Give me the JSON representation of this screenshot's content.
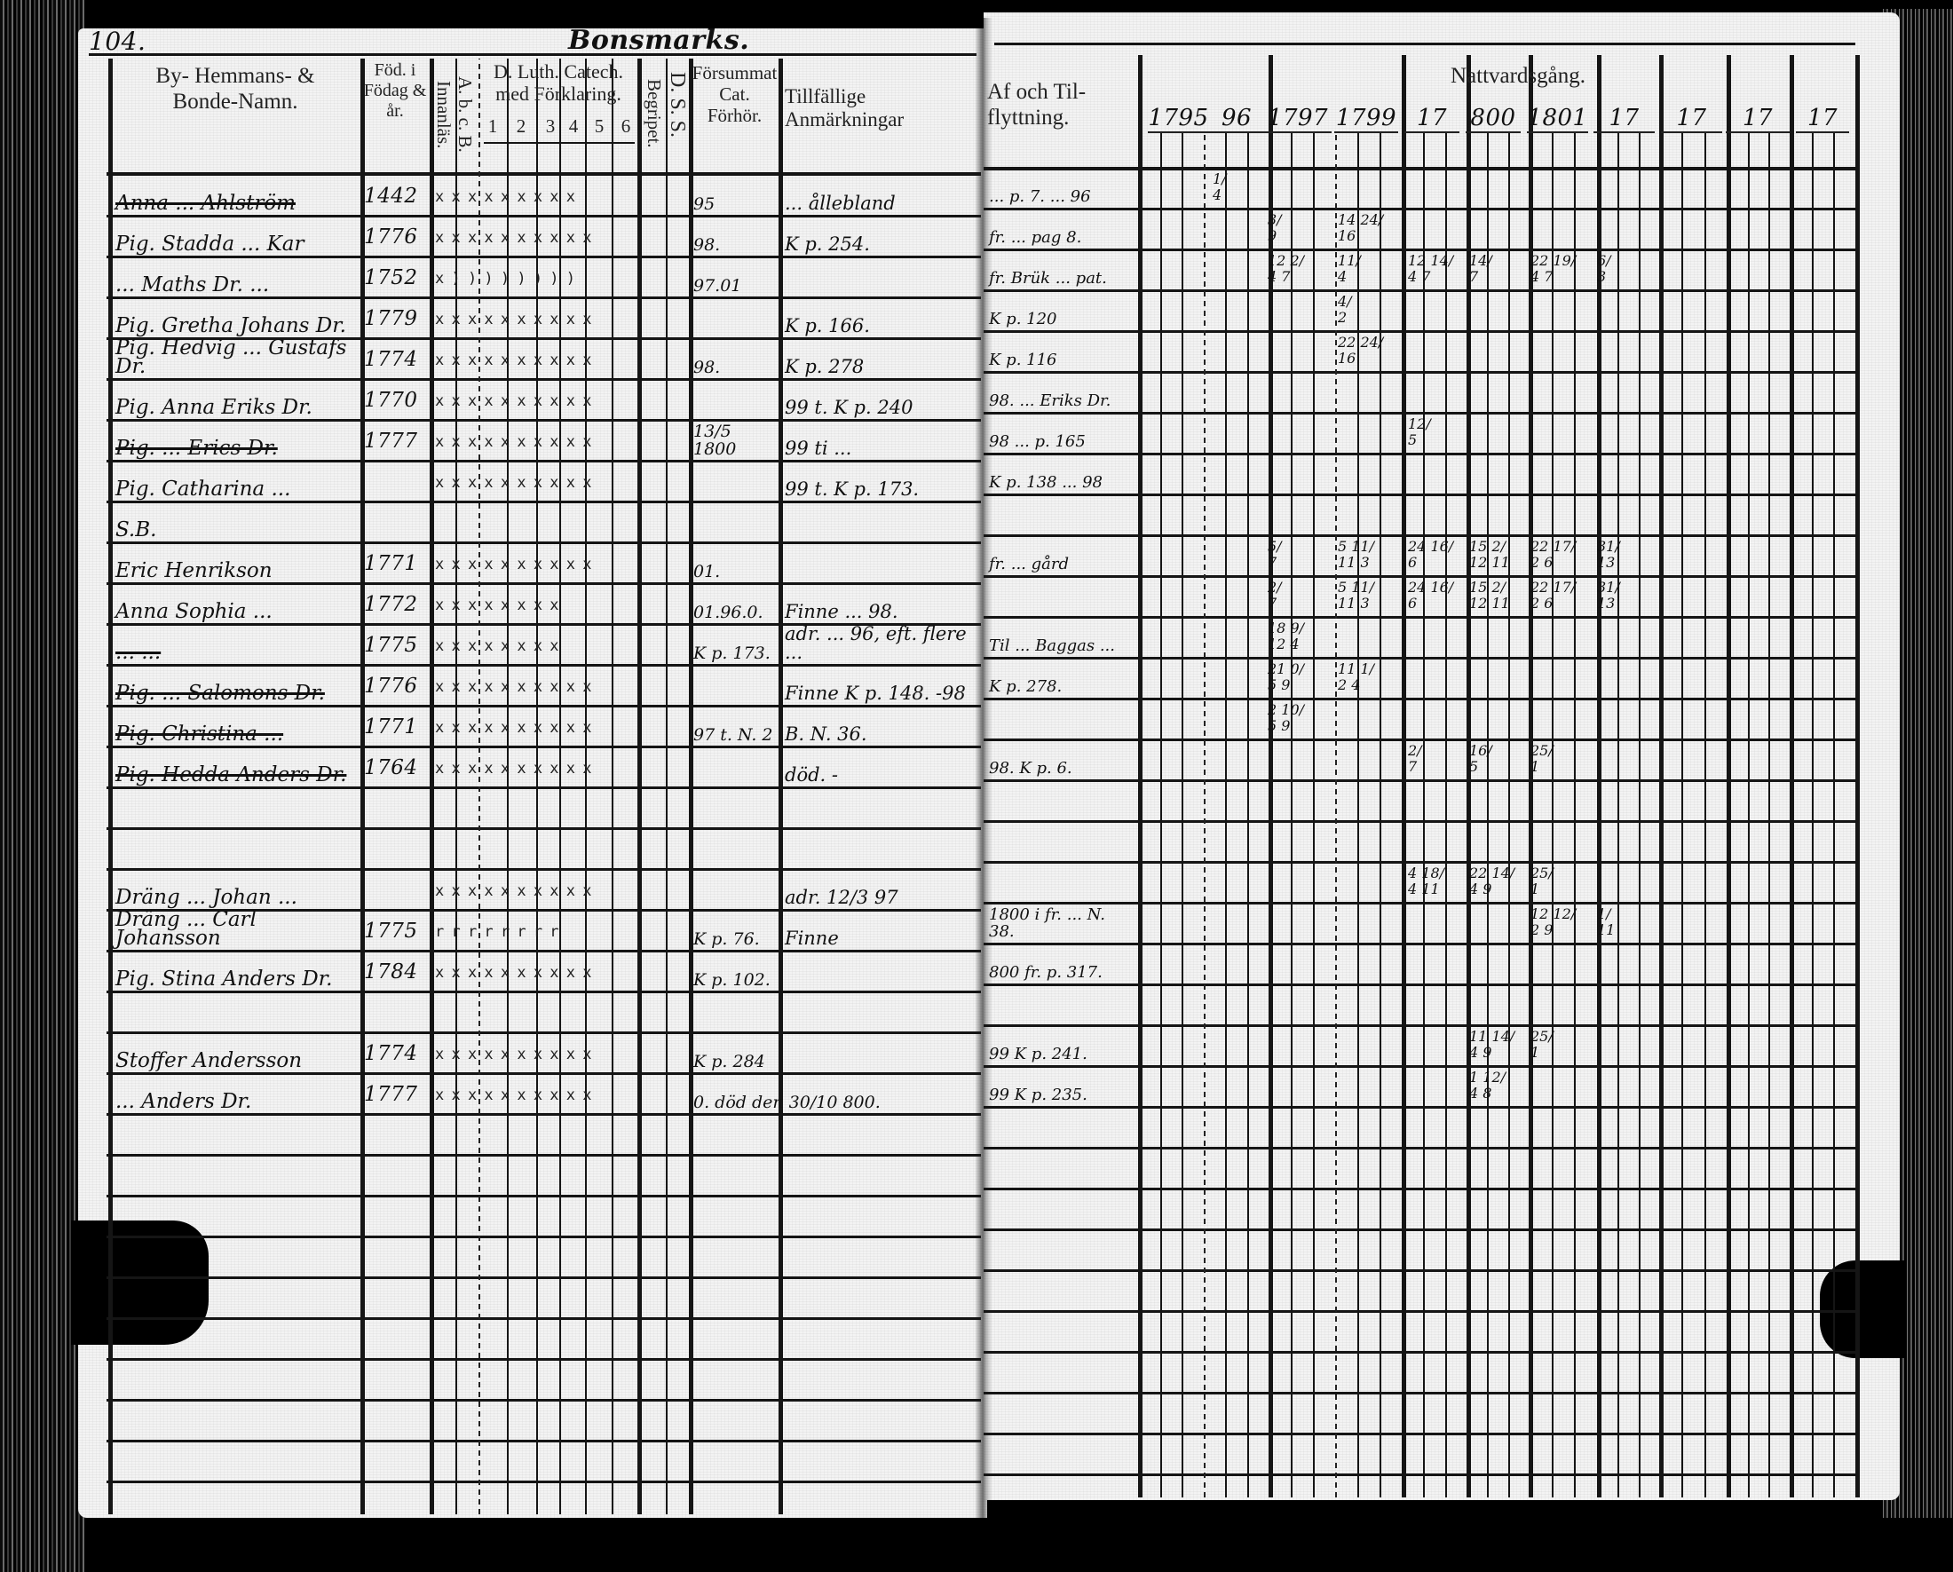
{
  "page": {
    "page_number": "104.",
    "village_title": "Bonsmarks."
  },
  "left_headers": {
    "name": "By- Hemmans- & Bonde-Namn.",
    "born": "Föd. i Födag & år.",
    "abc": "A. b. c. B. Innanläs.",
    "catechism": "D. Luth. Catech. med Förklaring.",
    "catechism_parts": [
      "1",
      "2",
      "3",
      "4",
      "5",
      "6"
    ],
    "understood": "Begripet.",
    "dss": "D. S. S.",
    "missed": "Försummat Cat. Förhör.",
    "remarks": "Tillfällige Anmärkningar"
  },
  "right_headers": {
    "moves": "Af och Til-flyttning.",
    "communion": "Nattvardsgång.",
    "years": [
      "1795",
      "96",
      "1797",
      "1799",
      "17",
      "800",
      "1801",
      "17",
      "17",
      "17",
      "17"
    ]
  },
  "rows": [
    {
      "name": "Anna ... Ahlström",
      "struck": true,
      "born": "1442",
      "ticks": "x x x x x x x x x",
      "missed": "95",
      "remark": "... ållebland",
      "move": "... p. 7. ... 96"
    },
    {
      "name": "Pig. Stadda ... Kar",
      "born": "1776",
      "ticks": "x x x x x x x x x x",
      "missed": "98.",
      "remark": "K p. 254.",
      "move": "fr. ... pag 8."
    },
    {
      "name": "... Maths Dr. ...",
      "born": "1752",
      "ticks": "x ) ) ) ) ) ) ) )",
      "missed": "97.01",
      "remark": "",
      "move": "fr. Brük ... pat."
    },
    {
      "name": "Pig. Gretha Johans Dr.",
      "born": "1779",
      "ticks": "x x x x x x x x x x",
      "missed": "",
      "remark": "K p. 166.",
      "move": "K p. 120"
    },
    {
      "name": "Pig. Hedvig ... Gustafs Dr.",
      "born": "1774",
      "ticks": "x x x x x x x x x x",
      "missed": "98.",
      "remark": "K p. 278",
      "move": "K p. 116"
    },
    {
      "name": "Pig. Anna Eriks Dr.",
      "born": "1770",
      "ticks": "x x x x x x x x x x",
      "missed": "",
      "remark": "99 t. K p. 240",
      "move": "98. ... Eriks Dr."
    },
    {
      "name": "Pig. ... Erics Dr.",
      "struck": true,
      "born": "1777",
      "ticks": "x x x x x x x x x x",
      "missed": "13/5 1800",
      "remark": "99 ti ...",
      "move": "98 ... p. 165"
    },
    {
      "name": "Pig. Catharina ...",
      "born": "",
      "ticks": "x x x x x x x x x x",
      "missed": "",
      "remark": "99 t. K p. 173.",
      "move": "K p. 138 ... 98"
    },
    {
      "name": "S.B.",
      "born": "",
      "ticks": "",
      "missed": "",
      "remark": "",
      "move": ""
    },
    {
      "name": "Eric Henrikson",
      "born": "1771",
      "ticks": "x x x x x x x x x x",
      "missed": "01.",
      "remark": "",
      "move": "fr. ... gård"
    },
    {
      "name": "Anna Sophia ...",
      "born": "1772",
      "ticks": "x x x x x x x x",
      "missed": "01.96.0.",
      "remark": "Finne ... 98.",
      "move": ""
    },
    {
      "name": "... ...",
      "struck": true,
      "born": "1775",
      "ticks": "x x x x x x x x",
      "missed": "K p. 173.",
      "remark": "adr. ... 96, eft. flere ...",
      "move": "Til ... Baggas ..."
    },
    {
      "name": "Pig. ... Salomons Dr.",
      "struck": true,
      "born": "1776",
      "ticks": "x x x x x x x x x x",
      "missed": "",
      "remark": "Finne K p. 148. -98",
      "move": "K p. 278."
    },
    {
      "name": "Pig. Christina ...",
      "struck": true,
      "born": "1771",
      "ticks": "x x x x x x x x x x",
      "missed": "97 t. N. 2",
      "remark": "B. N. 36.",
      "move": ""
    },
    {
      "name": "Pig. Hedda Anders Dr.",
      "struck": true,
      "born": "1764",
      "ticks": "x x x x x x x x x x",
      "missed": "",
      "remark": "död. -",
      "move": "98. K p. 6."
    },
    {},
    {},
    {
      "name": "Dräng ... Johan ...",
      "born": "",
      "ticks": "x x x x x x x x x x",
      "missed": "",
      "remark": "adr. 12/3 97",
      "move": ""
    },
    {
      "name": "Dräng ... Carl Johansson",
      "born": "1775",
      "ticks": "r r r r r r r r",
      "missed": "K p. 76.",
      "remark": "Finne",
      "move": "1800 i fr. ... N. 38."
    },
    {
      "name": "Pig. Stina Anders Dr.",
      "born": "1784",
      "ticks": "x x x x x x x x x x",
      "missed": "K p. 102.",
      "remark": "",
      "move": "800 fr. p. 317."
    },
    {},
    {
      "name": "Stoffer Andersson",
      "born": "1774",
      "ticks": "x x x x x x x x x x",
      "missed": "K p. 284",
      "remark": "",
      "move": "99 K p. 241."
    },
    {
      "name": "... Anders Dr.",
      "born": "1777",
      "ticks": "x x x x x x x x x x",
      "missed": "0. död den 30/10 800.",
      "remark": "",
      "move": "99 K p. 235."
    }
  ],
  "communion_marks": [
    {
      "row": 0,
      "group": 1,
      "value": "1/4"
    },
    {
      "row": 1,
      "group": 2,
      "value": "3/9"
    },
    {
      "row": 1,
      "group": 3,
      "value": "14 24/16"
    },
    {
      "row": 2,
      "group": 2,
      "value": "12 2/4 7"
    },
    {
      "row": 2,
      "group": 3,
      "value": "11/4"
    },
    {
      "row": 2,
      "group": 4,
      "value": "12 14/4 7"
    },
    {
      "row": 2,
      "group": 5,
      "value": "14/7"
    },
    {
      "row": 2,
      "group": 6,
      "value": "22 19/4 7"
    },
    {
      "row": 2,
      "group": 7,
      "value": "6/3"
    },
    {
      "row": 3,
      "group": 3,
      "value": "4/2"
    },
    {
      "row": 4,
      "group": 3,
      "value": "22 24/16"
    },
    {
      "row": 6,
      "group": 4,
      "value": "12/5"
    },
    {
      "row": 9,
      "group": 2,
      "value": "5/7"
    },
    {
      "row": 9,
      "group": 3,
      "value": "5 11/11 3"
    },
    {
      "row": 9,
      "group": 4,
      "value": "24 16/6"
    },
    {
      "row": 9,
      "group": 5,
      "value": "15 2/12 11"
    },
    {
      "row": 9,
      "group": 6,
      "value": "22 17/2 6"
    },
    {
      "row": 9,
      "group": 7,
      "value": "31/13"
    },
    {
      "row": 10,
      "group": 2,
      "value": "2/7"
    },
    {
      "row": 10,
      "group": 3,
      "value": "5 11/11 3"
    },
    {
      "row": 10,
      "group": 4,
      "value": "24 16/6"
    },
    {
      "row": 10,
      "group": 5,
      "value": "15 2/12 11"
    },
    {
      "row": 10,
      "group": 6,
      "value": "22 17/2 6"
    },
    {
      "row": 10,
      "group": 7,
      "value": "31/13"
    },
    {
      "row": 11,
      "group": 2,
      "value": "18 9/12 4"
    },
    {
      "row": 12,
      "group": 2,
      "value": "21 0/5 9"
    },
    {
      "row": 12,
      "group": 3,
      "value": "11 1/2 4"
    },
    {
      "row": 13,
      "group": 2,
      "value": "2 10/5 9"
    },
    {
      "row": 14,
      "group": 4,
      "value": "2/7"
    },
    {
      "row": 14,
      "group": 5,
      "value": "16/5"
    },
    {
      "row": 14,
      "group": 6,
      "value": "25/1"
    },
    {
      "row": 17,
      "group": 4,
      "value": "4 18/4 11"
    },
    {
      "row": 17,
      "group": 5,
      "value": "22 14/4 9"
    },
    {
      "row": 17,
      "group": 6,
      "value": "25/1"
    },
    {
      "row": 18,
      "group": 6,
      "value": "12 12/2 9"
    },
    {
      "row": 18,
      "group": 7,
      "value": "1/11"
    },
    {
      "row": 21,
      "group": 5,
      "value": "11 14/4 9"
    },
    {
      "row": 21,
      "group": 6,
      "value": "25/1"
    },
    {
      "row": 22,
      "group": 5,
      "value": "1 12/4 8"
    }
  ]
}
